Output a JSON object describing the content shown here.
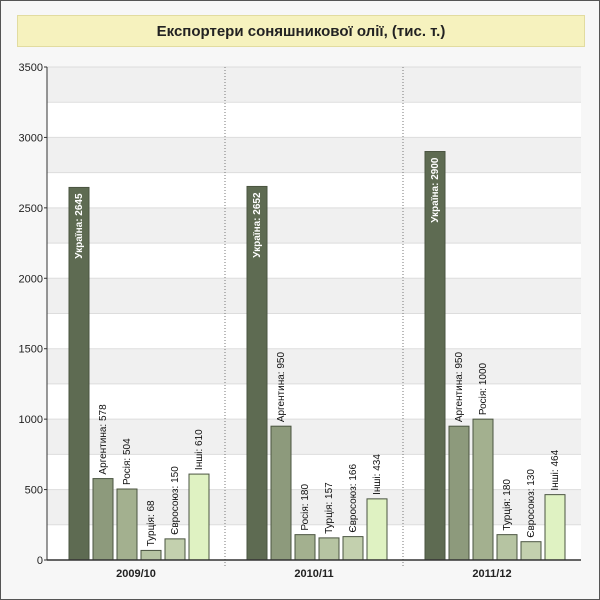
{
  "chart_data": {
    "type": "bar",
    "title": "Експортери соняшникової олії, (тис. т.)",
    "xlabel": "",
    "ylabel": "",
    "ylim": [
      0,
      3500
    ],
    "yticks": [
      0,
      500,
      1000,
      1500,
      2000,
      2500,
      3000,
      3500
    ],
    "grid": true,
    "groups": [
      {
        "category": "2009/10",
        "bars": [
          {
            "name": "Україна",
            "value": 2645,
            "label": "Україна: 2645",
            "color": "#5e6b52"
          },
          {
            "name": "Аргентина",
            "value": 578,
            "label": "Аргентина: 578",
            "color": "#8d9a7c"
          },
          {
            "name": "Росія",
            "value": 504,
            "label": "Росія: 504",
            "color": "#a3b08f"
          },
          {
            "name": "Турція",
            "value": 68,
            "label": "Турція: 68",
            "color": "#b6c4a2"
          },
          {
            "name": "Євросоюз",
            "value": 150,
            "label": "Євросоюз: 150",
            "color": "#c3d0ae"
          },
          {
            "name": "Інші",
            "value": 610,
            "label": "Інші: 610",
            "color": "#dff2c2"
          }
        ]
      },
      {
        "category": "2010/11",
        "bars": [
          {
            "name": "Україна",
            "value": 2652,
            "label": "Україна: 2652",
            "color": "#5e6b52"
          },
          {
            "name": "Аргентина",
            "value": 950,
            "label": "Аргентина: 950",
            "color": "#8d9a7c"
          },
          {
            "name": "Росія",
            "value": 180,
            "label": "Росія: 180",
            "color": "#a3b08f"
          },
          {
            "name": "Турція",
            "value": 157,
            "label": "Турція: 157",
            "color": "#b6c4a2"
          },
          {
            "name": "Євросоюз",
            "value": 166,
            "label": "Євросоюз: 166",
            "color": "#c3d0ae"
          },
          {
            "name": "Інші",
            "value": 434,
            "label": "Інші: 434",
            "color": "#dff2c2"
          }
        ]
      },
      {
        "category": "2011/12",
        "bars": [
          {
            "name": "Україна",
            "value": 2900,
            "label": "Україна: 2900",
            "color": "#5e6b52"
          },
          {
            "name": "Аргентина",
            "value": 950,
            "label": "Аргентина: 950",
            "color": "#8d9a7c"
          },
          {
            "name": "Росія",
            "value": 1000,
            "label": "Росія: 1000",
            "color": "#a3b08f"
          },
          {
            "name": "Турція",
            "value": 180,
            "label": "Турція: 180",
            "color": "#b6c4a2"
          },
          {
            "name": "Євросоюз",
            "value": 130,
            "label": "Євросоюз: 130",
            "color": "#c3d0ae"
          },
          {
            "name": "Інші",
            "value": 464,
            "label": "Інші: 464",
            "color": "#dff2c2"
          }
        ]
      }
    ]
  }
}
